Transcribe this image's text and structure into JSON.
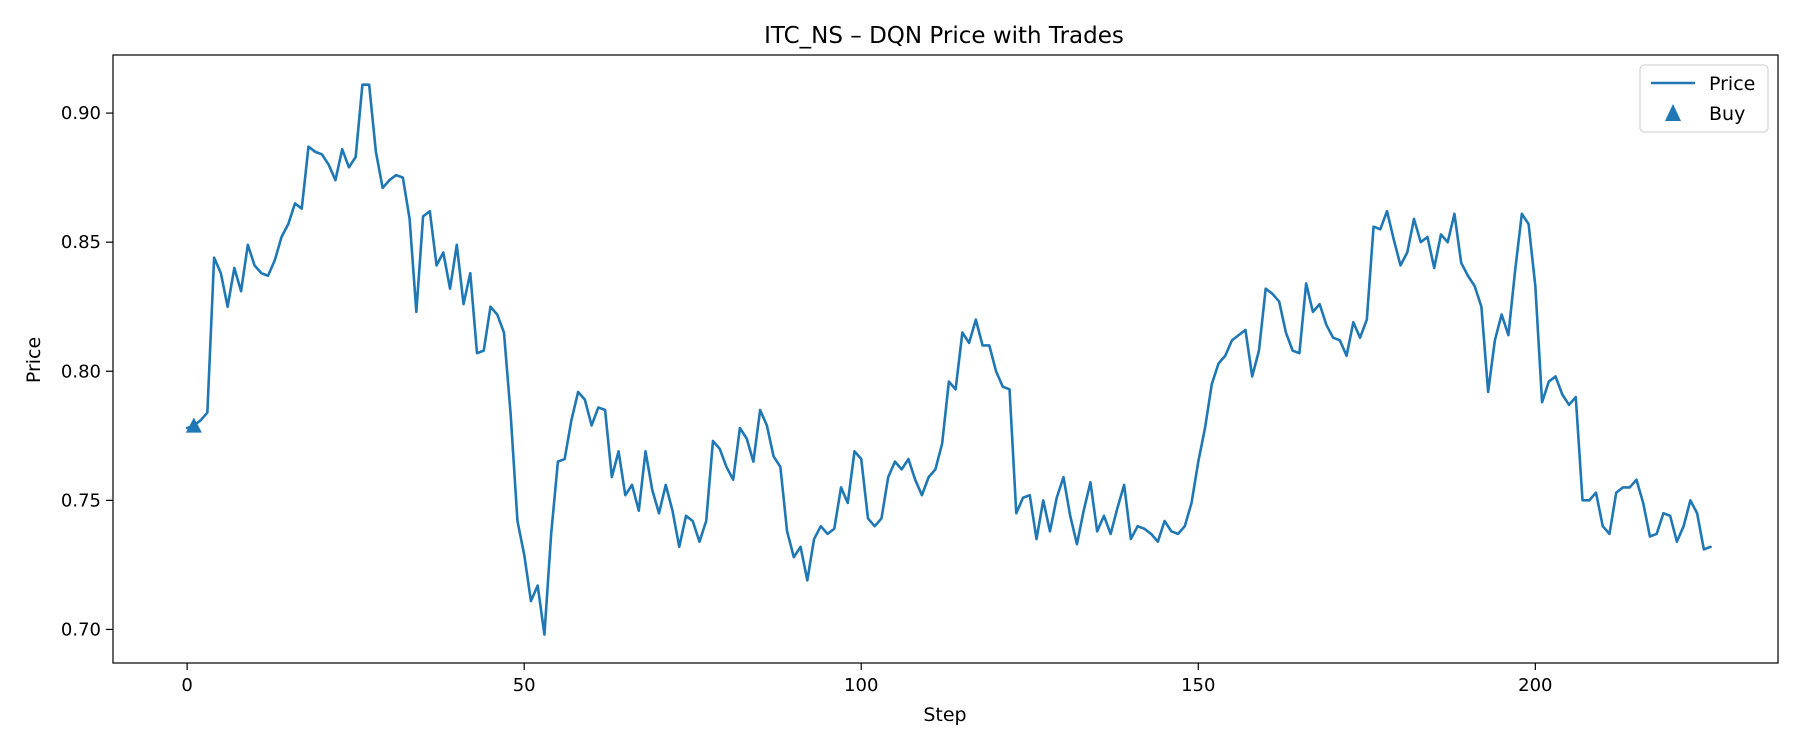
{
  "colors": {
    "series": "#1f77b4",
    "axes": "#000000",
    "legend_border": "#cccccc"
  },
  "chart_data": {
    "type": "line",
    "title": "ITC_NS – DQN Price with Trades",
    "xlabel": "Step",
    "ylabel": "Price",
    "xlim": [
      -11,
      236
    ],
    "ylim": [
      0.687,
      0.9225
    ],
    "xticks": [
      0,
      50,
      100,
      150,
      200
    ],
    "xtick_labels": [
      "0",
      "50",
      "100",
      "150",
      "200"
    ],
    "yticks": [
      0.7,
      0.75,
      0.8,
      0.85,
      0.9
    ],
    "ytick_labels": [
      "0.70",
      "0.75",
      "0.80",
      "0.85",
      "0.90"
    ],
    "grid": false,
    "legend_position": "top-right",
    "series": [
      {
        "name": "Price",
        "kind": "line",
        "x_start": 0,
        "x_step": 1,
        "values": [
          0.778,
          0.779,
          0.781,
          0.784,
          0.844,
          0.838,
          0.825,
          0.84,
          0.831,
          0.849,
          0.841,
          0.838,
          0.837,
          0.843,
          0.852,
          0.857,
          0.865,
          0.863,
          0.887,
          0.885,
          0.884,
          0.88,
          0.874,
          0.886,
          0.879,
          0.883,
          0.911,
          0.911,
          0.885,
          0.871,
          0.874,
          0.876,
          0.875,
          0.859,
          0.823,
          0.86,
          0.862,
          0.841,
          0.846,
          0.832,
          0.849,
          0.826,
          0.838,
          0.807,
          0.808,
          0.825,
          0.822,
          0.815,
          0.783,
          0.742,
          0.729,
          0.711,
          0.717,
          0.698,
          0.737,
          0.765,
          0.766,
          0.781,
          0.792,
          0.789,
          0.779,
          0.786,
          0.785,
          0.759,
          0.769,
          0.752,
          0.756,
          0.746,
          0.769,
          0.754,
          0.745,
          0.756,
          0.746,
          0.732,
          0.744,
          0.742,
          0.734,
          0.742,
          0.773,
          0.77,
          0.763,
          0.758,
          0.778,
          0.774,
          0.765,
          0.785,
          0.779,
          0.767,
          0.763,
          0.738,
          0.728,
          0.732,
          0.719,
          0.735,
          0.74,
          0.737,
          0.739,
          0.755,
          0.749,
          0.769,
          0.766,
          0.743,
          0.74,
          0.743,
          0.759,
          0.765,
          0.762,
          0.766,
          0.758,
          0.752,
          0.759,
          0.762,
          0.772,
          0.796,
          0.793,
          0.815,
          0.811,
          0.82,
          0.81,
          0.81,
          0.8,
          0.794,
          0.793,
          0.745,
          0.751,
          0.752,
          0.735,
          0.75,
          0.738,
          0.751,
          0.759,
          0.744,
          0.733,
          0.746,
          0.757,
          0.738,
          0.744,
          0.737,
          0.747,
          0.756,
          0.735,
          0.74,
          0.739,
          0.737,
          0.734,
          0.742,
          0.738,
          0.737,
          0.74,
          0.749,
          0.765,
          0.778,
          0.795,
          0.803,
          0.806,
          0.812,
          0.814,
          0.816,
          0.798,
          0.808,
          0.832,
          0.83,
          0.827,
          0.815,
          0.808,
          0.807,
          0.834,
          0.823,
          0.826,
          0.818,
          0.813,
          0.812,
          0.806,
          0.819,
          0.813,
          0.82,
          0.856,
          0.855,
          0.862,
          0.851,
          0.841,
          0.846,
          0.859,
          0.85,
          0.852,
          0.84,
          0.853,
          0.85,
          0.861,
          0.842,
          0.837,
          0.833,
          0.825,
          0.792,
          0.812,
          0.822,
          0.814,
          0.839,
          0.861,
          0.857,
          0.833,
          0.788,
          0.796,
          0.798,
          0.791,
          0.787,
          0.79,
          0.75,
          0.75,
          0.753,
          0.74,
          0.737,
          0.753,
          0.755,
          0.755,
          0.758,
          0.749,
          0.736,
          0.737,
          0.745,
          0.744,
          0.734,
          0.74,
          0.75,
          0.745,
          0.731,
          0.732
        ]
      },
      {
        "name": "Buy",
        "kind": "scatter",
        "marker": "triangle-up",
        "points": [
          {
            "x": 1,
            "y": 0.779
          }
        ]
      }
    ]
  }
}
